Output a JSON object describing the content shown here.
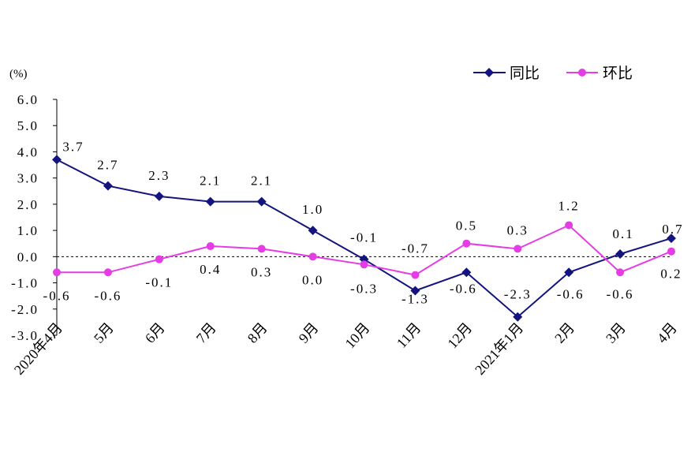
{
  "chart_data": {
    "type": "line",
    "ylabel": "(%)",
    "ylim": [
      -3.0,
      6.0
    ],
    "y_tick_labels": [
      "6.0",
      "5.0",
      "4.0",
      "3.0",
      "2.0",
      "1.0",
      "0.0",
      "-1.0",
      "-2.0",
      "-3.0"
    ],
    "categories": [
      "2020年4月",
      "5月",
      "6月",
      "7月",
      "8月",
      "9月",
      "10月",
      "11月",
      "12月",
      "2021年1月",
      "2月",
      "3月",
      "4月"
    ],
    "series": [
      {
        "name": "同比",
        "color": "#14147e",
        "marker": "diamond",
        "values": [
          3.7,
          2.7,
          2.3,
          2.1,
          2.1,
          1.0,
          -0.1,
          -1.3,
          -0.6,
          -2.3,
          -0.6,
          0.1,
          0.7
        ],
        "labels": [
          "3.7",
          "2.7",
          "2.3",
          "2.1",
          "2.1",
          "1.0",
          "-0.1",
          "-1.3",
          "-0.6",
          "-2.3",
          "-0.6",
          "0.1",
          "0.7"
        ]
      },
      {
        "name": "环比",
        "color": "#e63ce6",
        "marker": "circle",
        "values": [
          -0.6,
          -0.6,
          -0.1,
          0.4,
          0.3,
          0.0,
          -0.3,
          -0.7,
          0.5,
          0.3,
          1.2,
          -0.6,
          0.2
        ],
        "labels": [
          "-0.6",
          "-0.6",
          "-0.1",
          "0.4",
          "0.3",
          "0.0",
          "-0.3",
          "-0.7",
          "0.5",
          "0.3",
          "1.2",
          "-0.6",
          "0.2"
        ]
      }
    ],
    "grid": false,
    "legend": "top-right"
  }
}
